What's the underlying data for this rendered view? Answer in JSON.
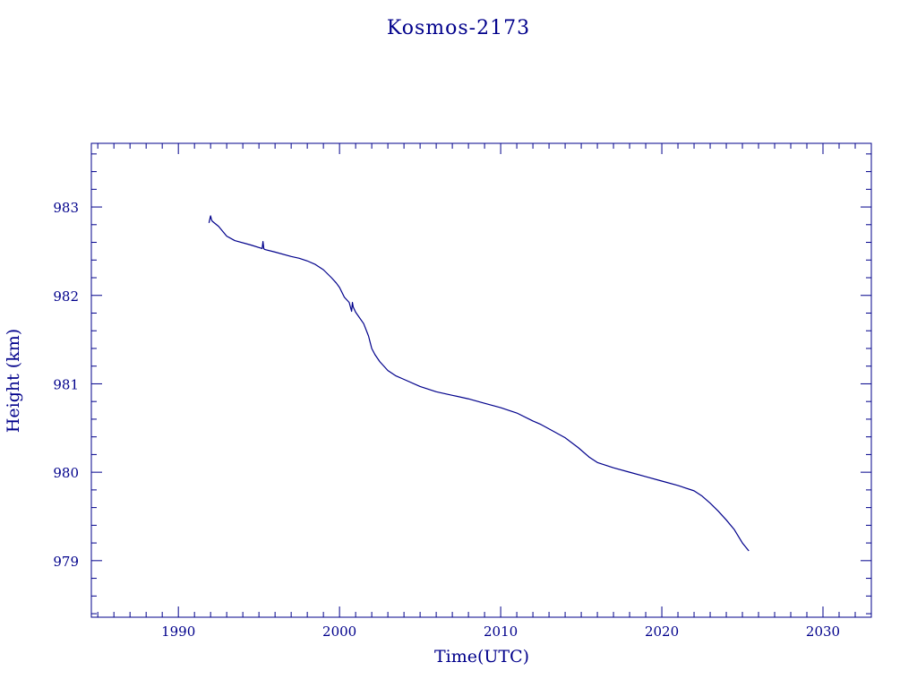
{
  "chart_data": {
    "type": "line",
    "title": "Kosmos-2173",
    "xlabel": "Time(UTC)",
    "ylabel": "Height (km)",
    "xlim": [
      1984.6,
      2033.0
    ],
    "ylim": [
      978.36,
      983.72
    ],
    "x_ticks": [
      1990,
      2000,
      2010,
      2020,
      2030
    ],
    "x_tick_labels": [
      "1990",
      "2000",
      "2010",
      "2020",
      "2030"
    ],
    "y_ticks": [
      979,
      980,
      981,
      982,
      983
    ],
    "y_tick_labels": [
      "979",
      "980",
      "981",
      "982",
      "983"
    ],
    "grid": false,
    "color": "#00008b",
    "series": [
      {
        "x": [
          1991.9,
          1992.0,
          1992.05,
          1992.1,
          1992.5,
          1993.0,
          1993.5,
          1994.5,
          1995.2,
          1995.25,
          1995.3,
          1995.35,
          1996.0,
          1997.0,
          1997.5,
          1998.0,
          1998.5,
          1999.0,
          1999.5,
          1999.8,
          2000.0,
          2000.3,
          2000.6,
          2000.75,
          2000.8,
          2000.85,
          2001.0,
          2001.5,
          2001.8,
          2002.0,
          2002.2,
          2002.5,
          2003.0,
          2003.5,
          2004.0,
          2005.0,
          2006.0,
          2007.0,
          2008.0,
          2009.0,
          2010.0,
          2011.0,
          2012.0,
          2012.5,
          2013.0,
          2014.0,
          2014.8,
          2015.5,
          2016.0,
          2017.0,
          2018.0,
          2019.0,
          2020.0,
          2021.0,
          2022.0,
          2022.5,
          2023.0,
          2023.5,
          2024.0,
          2024.5,
          2025.0,
          2025.4
        ],
        "y": [
          982.82,
          982.9,
          982.86,
          982.84,
          982.78,
          982.67,
          982.62,
          982.57,
          982.53,
          982.61,
          982.53,
          982.52,
          982.49,
          982.44,
          982.42,
          982.39,
          982.35,
          982.29,
          982.2,
          982.14,
          982.09,
          981.98,
          981.92,
          981.82,
          981.92,
          981.87,
          981.81,
          981.68,
          981.54,
          981.4,
          981.33,
          981.25,
          981.15,
          981.09,
          981.05,
          980.97,
          980.91,
          980.87,
          980.83,
          980.78,
          980.73,
          980.67,
          980.58,
          980.54,
          980.49,
          980.39,
          980.28,
          980.17,
          980.11,
          980.05,
          980.0,
          979.95,
          979.9,
          979.85,
          979.79,
          979.73,
          979.65,
          979.56,
          979.46,
          979.35,
          979.2,
          979.11
        ]
      }
    ]
  }
}
